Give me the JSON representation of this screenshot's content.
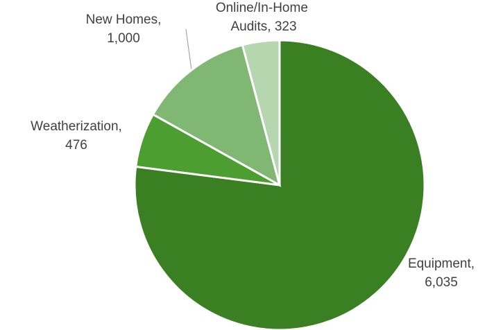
{
  "chart_data": {
    "type": "pie",
    "categories": [
      "Equipment",
      "Weatherization",
      "New Homes",
      "Online/In-Home Audits"
    ],
    "values": [
      6035,
      476,
      1000,
      323
    ],
    "value_labels": [
      "6,035",
      "476",
      "1,000",
      "323"
    ],
    "colors": [
      "#3b7f23",
      "#4b9e2f",
      "#80b873",
      "#b6d6b0"
    ]
  }
}
